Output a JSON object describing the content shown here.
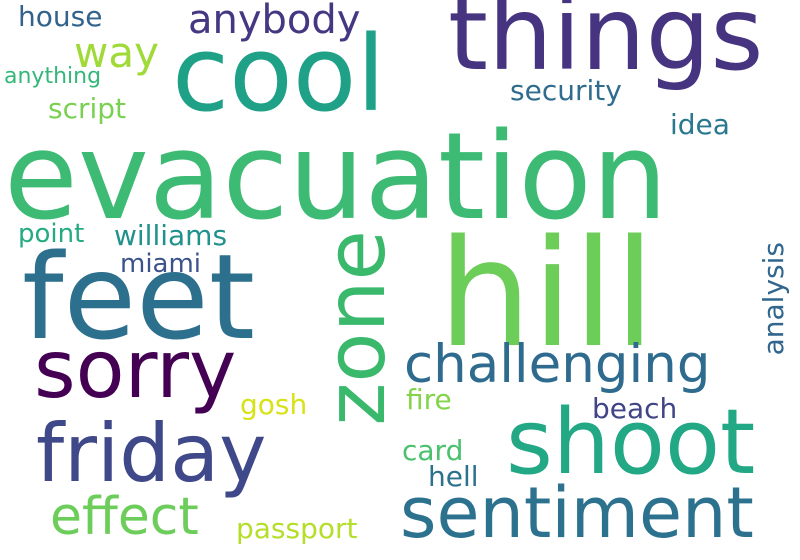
{
  "cloud": {
    "words": [
      {
        "text": "evacuation",
        "color": "#3dbb74"
      },
      {
        "text": "hill",
        "color": "#6dcd59"
      },
      {
        "text": "things",
        "color": "#463480"
      },
      {
        "text": "cool",
        "color": "#1fa187"
      },
      {
        "text": "feet",
        "color": "#2d708e"
      },
      {
        "text": "zone",
        "color": "#3ab96d"
      },
      {
        "text": "shoot",
        "color": "#22a884"
      },
      {
        "text": "sentiment",
        "color": "#2c728e"
      },
      {
        "text": "friday",
        "color": "#3f4889"
      },
      {
        "text": "sorry",
        "color": "#440154"
      },
      {
        "text": "challenging",
        "color": "#2e6b8e"
      },
      {
        "text": "effect",
        "color": "#6ccd5a"
      },
      {
        "text": "anybody",
        "color": "#453781"
      },
      {
        "text": "way",
        "color": "#a0da39"
      },
      {
        "text": "security",
        "color": "#2f6c8e"
      },
      {
        "text": "house",
        "color": "#33638d"
      },
      {
        "text": "script",
        "color": "#7ad151"
      },
      {
        "text": "anything",
        "color": "#35b779"
      },
      {
        "text": "idea",
        "color": "#2a788e"
      },
      {
        "text": "williams",
        "color": "#21918c"
      },
      {
        "text": "point",
        "color": "#25ab82"
      },
      {
        "text": "miami",
        "color": "#3b528b"
      },
      {
        "text": "analysis",
        "color": "#31668e"
      },
      {
        "text": "gosh",
        "color": "#d8e219"
      },
      {
        "text": "fire",
        "color": "#84d44b"
      },
      {
        "text": "beach",
        "color": "#414487"
      },
      {
        "text": "card",
        "color": "#4ac16d"
      },
      {
        "text": "hell",
        "color": "#2c728e"
      },
      {
        "text": "passport",
        "color": "#b5de2b"
      }
    ]
  }
}
